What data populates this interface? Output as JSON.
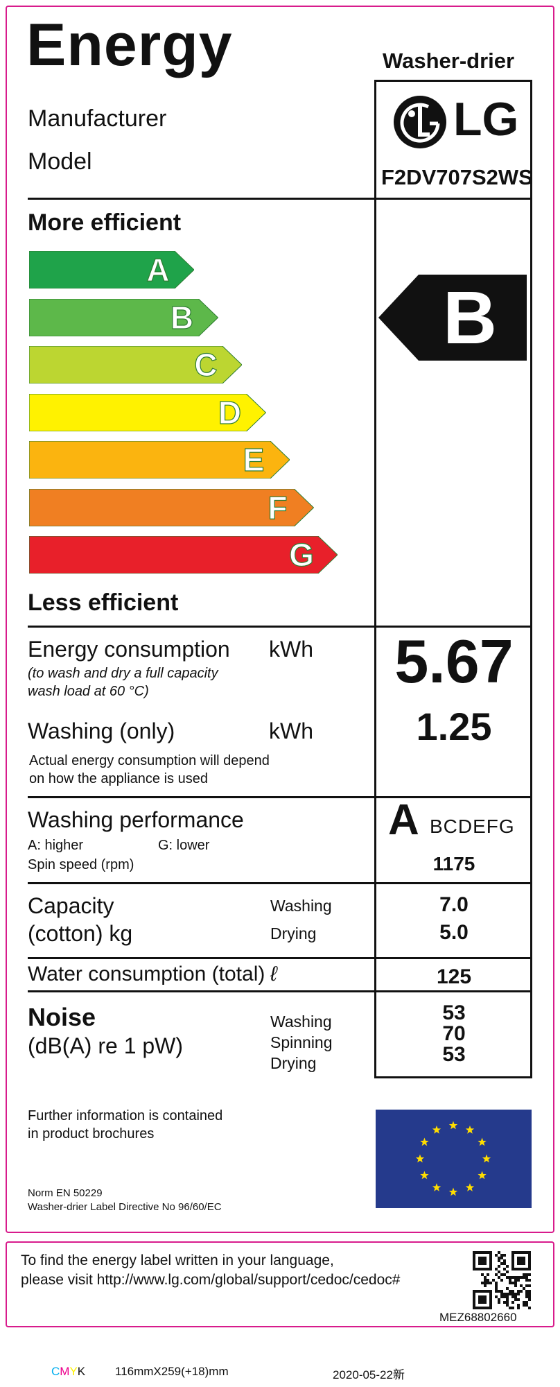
{
  "header": {
    "title": "Energy",
    "appliance_type": "Washer-drier",
    "manufacturer_label": "Manufacturer",
    "model_label": "Model",
    "brand": "LG",
    "model": "F2DV707S2WS"
  },
  "scale": {
    "more_efficient": "More efficient",
    "less_efficient": "Less efficient",
    "classes": [
      {
        "letter": "A",
        "color": "#1fa34a"
      },
      {
        "letter": "B",
        "color": "#5db84a"
      },
      {
        "letter": "C",
        "color": "#bcd631"
      },
      {
        "letter": "D",
        "color": "#fff200"
      },
      {
        "letter": "E",
        "color": "#fbb40f"
      },
      {
        "letter": "F",
        "color": "#f07f22"
      },
      {
        "letter": "G",
        "color": "#e8202a"
      }
    ],
    "rating": "B"
  },
  "energy": {
    "label": "Energy consumption",
    "unit": "kWh",
    "note_line1": "(to wash and dry a full capacity",
    "note_line2": "wash load at 60 °C)",
    "value": "5.67",
    "washing_label": "Washing (only)",
    "washing_unit": "kWh",
    "washing_value": "1.25",
    "disclaimer_line1": "Actual energy consumption will depend",
    "disclaimer_line2": "on how the appliance is used"
  },
  "performance": {
    "label": "Washing performance",
    "higher": "A: higher",
    "lower": "G: lower",
    "spin_label": "Spin speed (rpm)",
    "class_letter": "A",
    "other_classes": "BCDEFG",
    "spin_value": "1175"
  },
  "capacity": {
    "label_line1": "Capacity",
    "label_line2": "(cotton) kg",
    "washing_label": "Washing",
    "drying_label": "Drying",
    "washing_value": "7.0",
    "drying_value": "5.0"
  },
  "water": {
    "label": "Water consumption (total)",
    "unit": "ℓ",
    "value": "125"
  },
  "noise": {
    "label": "Noise",
    "unit": "(dB(A) re 1 pW)",
    "washing_label": "Washing",
    "spinning_label": "Spinning",
    "drying_label": "Drying",
    "washing_value": "53",
    "spinning_value": "70",
    "drying_value": "53"
  },
  "footer": {
    "info_line1": "Further information is contained",
    "info_line2": "in product brochures",
    "norm": "Norm EN 50229",
    "directive": "Washer-drier Label Directive No 96/60/EC"
  },
  "language_box": {
    "line1": "To find the energy label written in your language,",
    "line2": "please visit http://www.lg.com/global/support/cedoc/cedoc#",
    "part_number": "MEZ68802660"
  },
  "print_info": {
    "cmyk_c": "C",
    "cmyk_m": "M",
    "cmyk_y": "Y",
    "cmyk_k": "K",
    "size": "116mmX259(+18)mm",
    "date": "2020-05-22新"
  }
}
